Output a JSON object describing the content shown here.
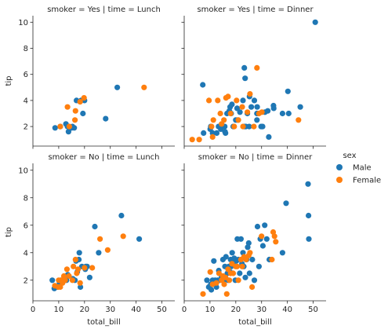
{
  "chart_data": {
    "type": "scatter",
    "kind": "facet-grid",
    "xlabel": "total_bill",
    "ylabel": "tip",
    "xlim": [
      0,
      55
    ],
    "ylim": [
      0.5,
      10.5
    ],
    "xticks": [
      0,
      10,
      20,
      30,
      40,
      50
    ],
    "yticks": [
      2,
      4,
      6,
      8,
      10
    ],
    "grid": false,
    "legend": {
      "title": "sex",
      "placement": "right",
      "entries": [
        {
          "name": "Male",
          "color": "#1f77b4"
        },
        {
          "name": "Female",
          "color": "#ff7f0e"
        }
      ]
    },
    "facets": [
      {
        "title": "smoker = Yes | time = Lunch",
        "series": [
          {
            "name": "Male",
            "points": [
              [
                8.6,
                1.9
              ],
              [
                10.6,
                2.0
              ],
              [
                12.8,
                2.2
              ],
              [
                13.4,
                2.0
              ],
              [
                13.8,
                1.6
              ],
              [
                14.0,
                2.0
              ],
              [
                15.0,
                1.9
              ],
              [
                15.3,
                2.0
              ],
              [
                16.0,
                1.9
              ],
              [
                16.9,
                4.0
              ],
              [
                18.7,
                4.0
              ],
              [
                19.4,
                3.0
              ],
              [
                20.0,
                4.0
              ],
              [
                28.2,
                2.6
              ],
              [
                32.7,
                5.0
              ]
            ]
          },
          {
            "name": "Female",
            "points": [
              [
                10.6,
                2.0
              ],
              [
                13.4,
                3.5
              ],
              [
                14.1,
                2.0
              ],
              [
                16.3,
                2.5
              ],
              [
                16.5,
                3.2
              ],
              [
                18.3,
                3.9
              ],
              [
                19.8,
                4.2
              ],
              [
                43.1,
                5.0
              ]
            ]
          }
        ]
      },
      {
        "title": "smoker = Yes | time = Dinner",
        "series": [
          {
            "name": "Male",
            "points": [
              [
                7.2,
                5.2
              ],
              [
                7.5,
                1.5
              ],
              [
                10.1,
                1.8
              ],
              [
                10.3,
                2.0
              ],
              [
                11.0,
                1.5
              ],
              [
                12.6,
                1.5
              ],
              [
                13.3,
                2.0
              ],
              [
                14.2,
                1.8
              ],
              [
                15.7,
                2.0
              ],
              [
                15.8,
                1.6
              ],
              [
                16.0,
                1.5
              ],
              [
                16.6,
                3.0
              ],
              [
                17.5,
                3.2
              ],
              [
                17.8,
                3.5
              ],
              [
                18.2,
                3.0
              ],
              [
                18.5,
                3.7
              ],
              [
                19.0,
                2.0
              ],
              [
                20.0,
                2.5
              ],
              [
                20.5,
                3.4
              ],
              [
                20.8,
                2.5
              ],
              [
                21.6,
                3.1
              ],
              [
                22.8,
                4.0
              ],
              [
                23.3,
                6.5
              ],
              [
                23.4,
                2.0
              ],
              [
                23.6,
                5.7
              ],
              [
                23.9,
                2.0
              ],
              [
                24.5,
                3.0
              ],
              [
                25.2,
                2.0
              ],
              [
                25.3,
                4.3
              ],
              [
                26.0,
                3.5
              ],
              [
                27.2,
                4.0
              ],
              [
                28.2,
                2.5
              ],
              [
                28.2,
                3.0
              ],
              [
                28.3,
                3.5
              ],
              [
                29.8,
                2.0
              ],
              [
                30.4,
                2.0
              ],
              [
                31.3,
                3.1
              ],
              [
                32.4,
                3.2
              ],
              [
                32.8,
                1.2
              ],
              [
                34.6,
                3.6
              ],
              [
                34.7,
                3.4
              ],
              [
                38.1,
                3.0
              ],
              [
                40.2,
                4.7
              ],
              [
                40.5,
                3.0
              ],
              [
                45.0,
                3.5
              ],
              [
                50.8,
                10.0
              ]
            ]
          },
          {
            "name": "Female",
            "points": [
              [
                3.1,
                1.0
              ],
              [
                5.8,
                1.0
              ],
              [
                9.6,
                4.0
              ],
              [
                10.6,
                2.0
              ],
              [
                11.0,
                1.2
              ],
              [
                11.3,
                2.5
              ],
              [
                13.0,
                4.0
              ],
              [
                14.0,
                3.0
              ],
              [
                14.5,
                2.2
              ],
              [
                15.4,
                2.5
              ],
              [
                16.2,
                4.2
              ],
              [
                17.0,
                4.3
              ],
              [
                18.0,
                3.0
              ],
              [
                19.4,
                2.0
              ],
              [
                20.3,
                4.0
              ],
              [
                21.0,
                2.5
              ],
              [
                22.5,
                3.5
              ],
              [
                22.8,
                2.0
              ],
              [
                24.5,
                3.1
              ],
              [
                25.5,
                4.5
              ],
              [
                27.0,
                2.0
              ],
              [
                28.2,
                6.5
              ],
              [
                29.0,
                3.0
              ],
              [
                30.1,
                3.1
              ],
              [
                44.3,
                2.5
              ]
            ]
          }
        ]
      },
      {
        "title": "smoker = No | time = Lunch",
        "series": [
          {
            "name": "Male",
            "points": [
              [
                7.5,
                2.0
              ],
              [
                8.3,
                1.4
              ],
              [
                9.5,
                1.5
              ],
              [
                10.3,
                1.8
              ],
              [
                10.8,
                2.0
              ],
              [
                12.2,
                2.0
              ],
              [
                13.0,
                2.0
              ],
              [
                13.5,
                2.4
              ],
              [
                15.5,
                2.1
              ],
              [
                16.3,
                2.0
              ],
              [
                16.7,
                3.4
              ],
              [
                17.2,
                2.6
              ],
              [
                17.8,
                3.5
              ],
              [
                18.0,
                4.0
              ],
              [
                18.4,
                1.5
              ],
              [
                19.0,
                3.0
              ],
              [
                20.3,
                2.8
              ],
              [
                20.5,
                3.0
              ],
              [
                21.0,
                3.0
              ],
              [
                22.0,
                2.2
              ],
              [
                24.0,
                5.9
              ],
              [
                25.5,
                4.0
              ],
              [
                34.3,
                6.7
              ],
              [
                41.2,
                5.0
              ]
            ]
          },
          {
            "name": "Female",
            "points": [
              [
                8.5,
                1.6
              ],
              [
                9.8,
                1.5
              ],
              [
                10.0,
                2.0
              ],
              [
                10.6,
                1.5
              ],
              [
                11.0,
                2.0
              ],
              [
                11.5,
                1.8
              ],
              [
                12.0,
                2.3
              ],
              [
                12.5,
                2.0
              ],
              [
                13.2,
                2.8
              ],
              [
                14.0,
                2.3
              ],
              [
                15.3,
                2.0
              ],
              [
                15.7,
                3.0
              ],
              [
                16.5,
                3.5
              ],
              [
                17.0,
                2.5
              ],
              [
                17.5,
                2.8
              ],
              [
                18.3,
                1.8
              ],
              [
                20.0,
                2.9
              ],
              [
                23.0,
                2.9
              ],
              [
                26.0,
                5.0
              ],
              [
                29.0,
                4.2
              ],
              [
                35.0,
                5.2
              ]
            ]
          }
        ]
      },
      {
        "title": "smoker = No | time = Dinner",
        "series": [
          {
            "name": "Male",
            "points": [
              [
                8.8,
                2.0
              ],
              [
                9.5,
                1.5
              ],
              [
                10.3,
                1.7
              ],
              [
                10.5,
                1.3
              ],
              [
                11.0,
                2.0
              ],
              [
                11.5,
                3.4
              ],
              [
                12.0,
                2.0
              ],
              [
                12.5,
                1.5
              ],
              [
                13.0,
                2.0
              ],
              [
                13.4,
                2.7
              ],
              [
                13.8,
                2.0
              ],
              [
                14.5,
                2.2
              ],
              [
                15.0,
                3.5
              ],
              [
                15.3,
                2.0
              ],
              [
                15.8,
                3.0
              ],
              [
                16.2,
                3.7
              ],
              [
                16.7,
                2.5
              ],
              [
                17.0,
                2.0
              ],
              [
                17.3,
                3.0
              ],
              [
                17.8,
                2.6
              ],
              [
                18.0,
                3.5
              ],
              [
                18.2,
                3.0
              ],
              [
                18.6,
                4.0
              ],
              [
                19.0,
                3.3
              ],
              [
                19.4,
                3.6
              ],
              [
                19.8,
                2.0
              ],
              [
                20.2,
                3.4
              ],
              [
                20.6,
                5.0
              ],
              [
                21.0,
                3.5
              ],
              [
                21.5,
                2.5
              ],
              [
                22.0,
                5.0
              ],
              [
                22.4,
                3.2
              ],
              [
                22.8,
                4.0
              ],
              [
                23.1,
                3.0
              ],
              [
                23.7,
                2.2
              ],
              [
                24.2,
                3.5
              ],
              [
                24.6,
                4.4
              ],
              [
                25.0,
                4.7
              ],
              [
                25.3,
                2.5
              ],
              [
                26.4,
                3.5
              ],
              [
                27.2,
                2.0
              ],
              [
                28.4,
                5.9
              ],
              [
                29.0,
                3.0
              ],
              [
                29.5,
                5.0
              ],
              [
                30.5,
                4.5
              ],
              [
                31.2,
                6.0
              ],
              [
                32.0,
                5.0
              ],
              [
                33.0,
                3.5
              ],
              [
                38.1,
                4.0
              ],
              [
                39.5,
                7.6
              ],
              [
                48.0,
                9.0
              ],
              [
                48.2,
                6.7
              ],
              [
                48.3,
                5.0
              ]
            ]
          },
          {
            "name": "Female",
            "points": [
              [
                7.3,
                1.0
              ],
              [
                10.1,
                2.6
              ],
              [
                11.0,
                1.7
              ],
              [
                12.5,
                1.8
              ],
              [
                13.5,
                2.5
              ],
              [
                14.5,
                2.0
              ],
              [
                15.0,
                2.3
              ],
              [
                15.5,
                1.7
              ],
              [
                16.0,
                2.2
              ],
              [
                16.5,
                1.0
              ],
              [
                17.0,
                2.8
              ],
              [
                17.5,
                2.0
              ],
              [
                18.0,
                2.5
              ],
              [
                18.5,
                3.2
              ],
              [
                19.0,
                2.5
              ],
              [
                20.0,
                3.0
              ],
              [
                20.5,
                3.0
              ],
              [
                21.0,
                2.0
              ],
              [
                22.0,
                3.5
              ],
              [
                22.5,
                3.0
              ],
              [
                23.2,
                3.7
              ],
              [
                24.0,
                3.5
              ],
              [
                25.0,
                3.8
              ],
              [
                25.5,
                4.0
              ],
              [
                26.3,
                1.5
              ],
              [
                30.0,
                5.2
              ],
              [
                34.5,
                5.5
              ],
              [
                35.0,
                5.2
              ],
              [
                35.5,
                4.8
              ],
              [
                34.0,
                3.5
              ]
            ]
          }
        ]
      }
    ]
  }
}
